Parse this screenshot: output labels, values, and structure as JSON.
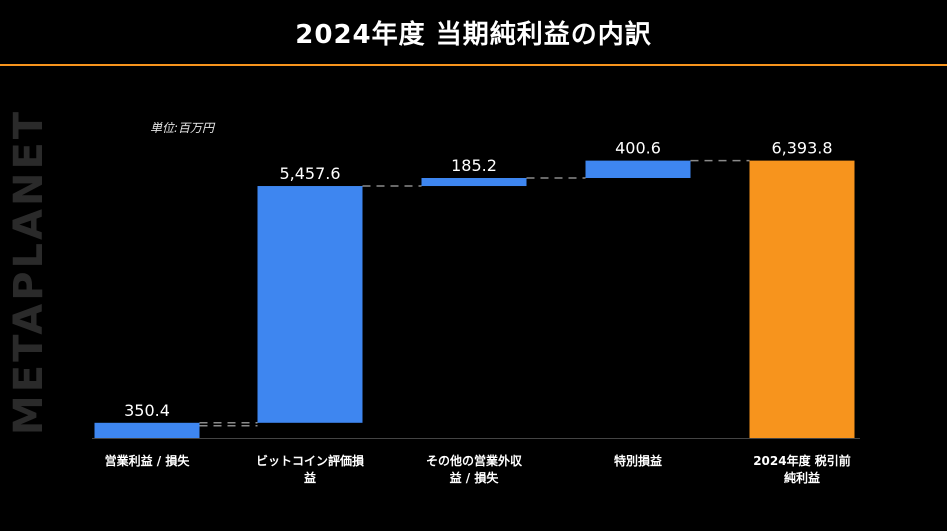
{
  "title": "2024年度 当期純利益の内訳",
  "unit_label": "単位:百万円",
  "watermark": "METAPLANET",
  "colors": {
    "increase": "#3e86f0",
    "total": "#f7941d",
    "accent_line": "#f7941d",
    "connector": "#8a8a8a"
  },
  "chart_data": {
    "type": "bar",
    "subtype": "waterfall",
    "title": "2024年度 当期純利益の内訳",
    "xlabel": "",
    "ylabel": "",
    "unit": "単位:百万円",
    "categories": [
      [
        "営業利益 / 損失"
      ],
      [
        "ビットコイン評価損",
        "益"
      ],
      [
        "その他の営業外収",
        "益 / 損失"
      ],
      [
        "特別損益"
      ],
      [
        "2024年度 税引前",
        "純利益"
      ]
    ],
    "values": [
      350.4,
      5457.6,
      185.2,
      400.6,
      6393.8
    ],
    "value_labels": [
      "350.4",
      "5,457.6",
      "185.2",
      "400.6",
      "6,393.8"
    ],
    "measure": [
      "relative",
      "relative",
      "relative",
      "relative",
      "total"
    ],
    "ylim": [
      0,
      6800
    ],
    "grid": false,
    "legend": "none"
  }
}
